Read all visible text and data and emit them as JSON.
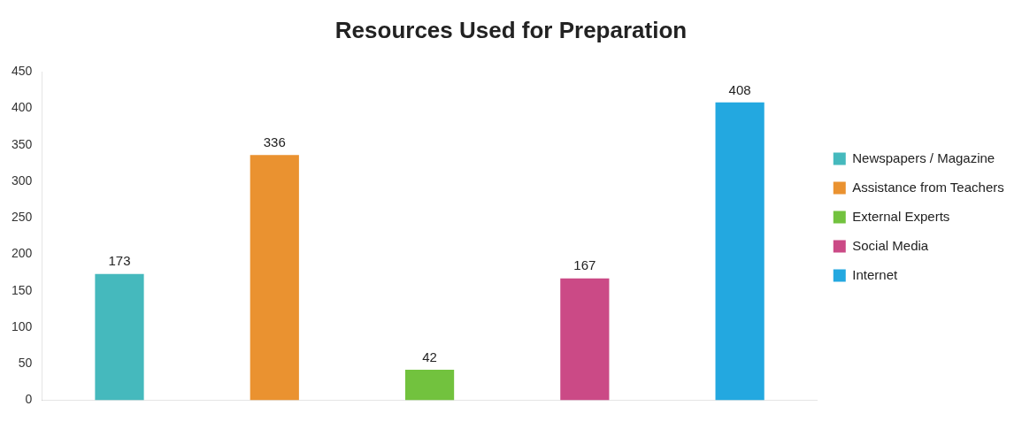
{
  "chart_data": {
    "type": "bar",
    "title": "Resources Used for Preparation",
    "categories": [
      null,
      null,
      null,
      null,
      null
    ],
    "series": [
      {
        "name": "Newspapers / Magazine",
        "color": "#45b9bd",
        "values": [
          173,
          null,
          null,
          null,
          null
        ]
      },
      {
        "name": "Assistance from Teachers",
        "color": "#ea9230",
        "values": [
          null,
          336,
          null,
          null,
          null
        ]
      },
      {
        "name": "External Experts",
        "color": "#72c23e",
        "values": [
          null,
          null,
          42,
          null,
          null
        ]
      },
      {
        "name": "Social Media",
        "color": "#cb4a86",
        "values": [
          null,
          null,
          null,
          167,
          null
        ]
      },
      {
        "name": "Internet",
        "color": "#23a8e0",
        "values": [
          null,
          null,
          null,
          null,
          408
        ]
      }
    ],
    "ylim": [
      0,
      450
    ],
    "yticks": [
      0,
      50,
      100,
      150,
      200,
      250,
      300,
      350,
      400,
      450
    ],
    "grid": false,
    "legend": "right",
    "data_labels": true
  }
}
